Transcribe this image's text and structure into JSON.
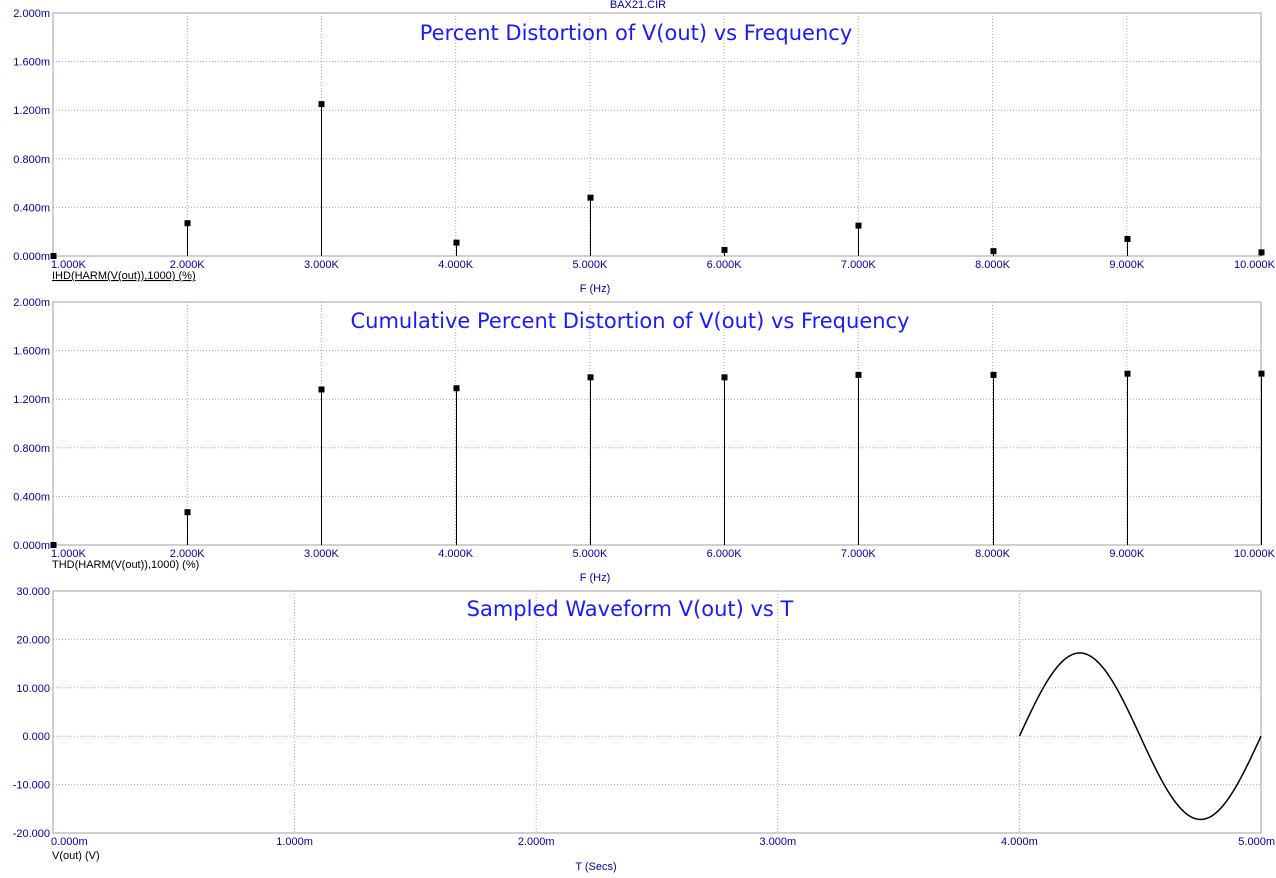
{
  "page_title": "BAX21.CIR",
  "chart_data": [
    {
      "type": "stem",
      "title": "Percent Distortion of V(out) vs Frequency",
      "expression": "IHD(HARM(V(out)),1000) (%)",
      "xlabel": "F (Hz)",
      "ylabel": "",
      "x_ticks": [
        "1.000K",
        "2.000K",
        "3.000K",
        "4.000K",
        "5.000K",
        "6.000K",
        "7.000K",
        "8.000K",
        "9.000K",
        "10.000K"
      ],
      "y_ticks": [
        "0.000m",
        "0.400m",
        "0.800m",
        "1.200m",
        "1.600m",
        "2.000m"
      ],
      "xlim": [
        1000,
        10000
      ],
      "ylim": [
        0,
        0.002
      ],
      "grid": true,
      "x": [
        1000,
        2000,
        3000,
        4000,
        5000,
        6000,
        7000,
        8000,
        9000,
        10000
      ],
      "values": [
        0,
        0.00027,
        0.00125,
        0.00011,
        0.00048,
        5e-05,
        0.00025,
        4e-05,
        0.00014,
        3e-05
      ],
      "color": "#000000"
    },
    {
      "type": "stem",
      "title": "Cumulative Percent Distortion of V(out) vs Frequency",
      "expression": "THD(HARM(V(out)),1000) (%)",
      "xlabel": "F (Hz)",
      "ylabel": "",
      "x_ticks": [
        "1.000K",
        "2.000K",
        "3.000K",
        "4.000K",
        "5.000K",
        "6.000K",
        "7.000K",
        "8.000K",
        "9.000K",
        "10.000K"
      ],
      "y_ticks": [
        "0.000m",
        "0.400m",
        "0.800m",
        "1.200m",
        "1.600m",
        "2.000m"
      ],
      "xlim": [
        1000,
        10000
      ],
      "ylim": [
        0,
        0.002
      ],
      "grid": true,
      "x": [
        1000,
        2000,
        3000,
        4000,
        5000,
        6000,
        7000,
        8000,
        9000,
        10000
      ],
      "values": [
        0,
        0.00027,
        0.00128,
        0.00129,
        0.00138,
        0.00138,
        0.0014,
        0.0014,
        0.00141,
        0.00141
      ],
      "color": "#000000"
    },
    {
      "type": "line",
      "title": "Sampled Waveform  V(out) vs T",
      "expression": "V(out) (V)",
      "xlabel": "T (Secs)",
      "ylabel": "",
      "x_ticks": [
        "0.000m",
        "1.000m",
        "2.000m",
        "3.000m",
        "4.000m",
        "5.000m"
      ],
      "y_ticks": [
        "-20.000",
        "-10.000",
        "0.000",
        "10.000",
        "20.000",
        "30.000"
      ],
      "xlim": [
        0,
        0.005
      ],
      "ylim": [
        -20,
        30
      ],
      "grid": true,
      "x": [
        0.004,
        0.0041,
        0.0042,
        0.00425,
        0.0043,
        0.0044,
        0.0045,
        0.0046,
        0.0047,
        0.00475,
        0.0048,
        0.0049,
        0.005
      ],
      "values": [
        0,
        10.11,
        16.35,
        17.19,
        16.35,
        10.11,
        0,
        -10.11,
        -16.35,
        -17.19,
        -16.35,
        -10.11,
        0
      ],
      "color": "#000000"
    }
  ]
}
